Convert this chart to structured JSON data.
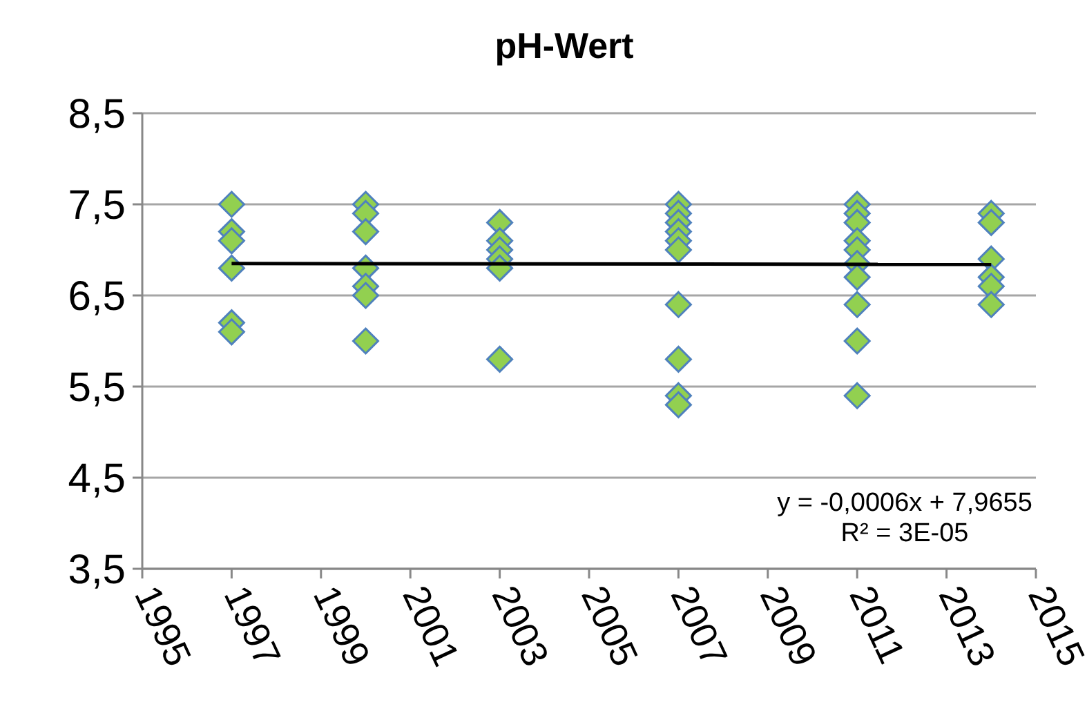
{
  "chart_data": {
    "type": "scatter",
    "title": "pH-Wert",
    "xlim": [
      1995,
      2015
    ],
    "xticks": [
      1995,
      1997,
      1999,
      2001,
      2003,
      2005,
      2007,
      2009,
      2011,
      2013,
      2015
    ],
    "ylim": [
      3.5,
      8.5
    ],
    "yticks": [
      {
        "value": 3.5,
        "label": "3,5"
      },
      {
        "value": 4.5,
        "label": "4,5"
      },
      {
        "value": 5.5,
        "label": "5,5"
      },
      {
        "value": 6.5,
        "label": "6,5"
      },
      {
        "value": 7.5,
        "label": "7,5"
      },
      {
        "value": 8.5,
        "label": "8,5"
      }
    ],
    "grid": "y",
    "marker": "diamond",
    "series": [
      {
        "color": "#92d050",
        "x": [
          1997,
          1997,
          1997,
          1997,
          1997,
          1997,
          2000,
          2000,
          2000,
          2000,
          2000,
          2000,
          2000,
          2003,
          2003,
          2003,
          2003,
          2003,
          2003,
          2007,
          2007,
          2007,
          2007,
          2007,
          2007,
          2007,
          2007,
          2007,
          2007,
          2011,
          2011,
          2011,
          2011,
          2011,
          2011,
          2011,
          2011,
          2011,
          2011,
          2014,
          2014,
          2014,
          2014,
          2014,
          2014
        ],
        "values": [
          7.5,
          7.2,
          7.1,
          6.8,
          6.2,
          6.1,
          7.5,
          7.4,
          7.2,
          6.8,
          6.6,
          6.5,
          6.0,
          7.3,
          7.1,
          7.0,
          6.9,
          6.8,
          5.8,
          7.5,
          7.4,
          7.3,
          7.2,
          7.1,
          7.0,
          6.4,
          5.8,
          5.4,
          5.3,
          7.5,
          7.4,
          7.3,
          7.1,
          7.0,
          6.85,
          6.7,
          6.4,
          6.0,
          5.4,
          7.4,
          7.3,
          6.9,
          6.7,
          6.6,
          6.4
        ]
      },
      {
        "type": "line",
        "color": "#000000",
        "marker": "none",
        "line_style": "solid",
        "x": [
          1997,
          2014
        ],
        "values": [
          6.85,
          6.84
        ]
      }
    ],
    "annotations": [
      "y = -0,0006x + 7,9655",
      "R² = 3E-05"
    ]
  }
}
